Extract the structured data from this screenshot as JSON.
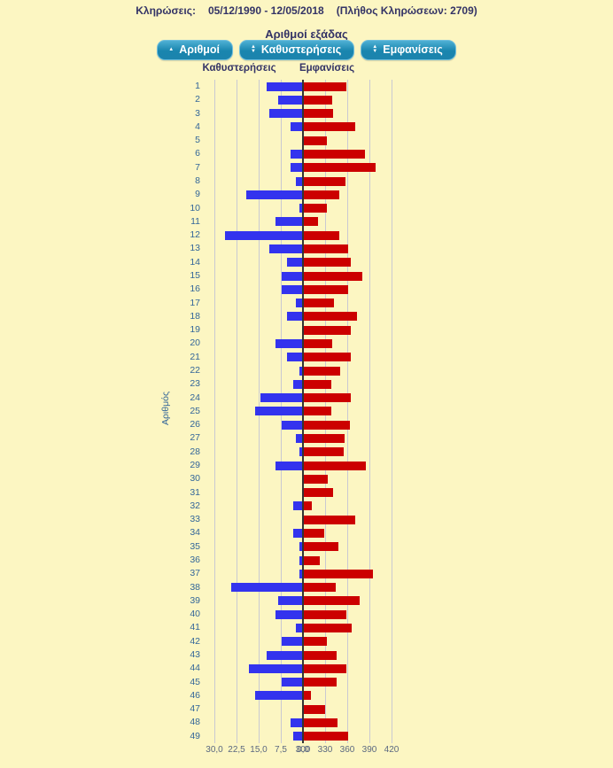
{
  "header": {
    "label": "Κληρώσεις:",
    "date_range": "05/12/1990 - 12/05/2018",
    "count_note": "(Πλήθος Κληρώσεων: 2709)"
  },
  "title": "Αριθμοί εξάδας",
  "buttons": [
    {
      "label": "Αριθμοί",
      "sort": "asc"
    },
    {
      "label": "Καθυστερήσεις",
      "sort": "both"
    },
    {
      "label": "Εμφανίσεις",
      "sort": "both"
    }
  ],
  "columns": {
    "left": "Καθυστερήσεις",
    "right": "Εμφανίσεις"
  },
  "colors": {
    "background": "#FCF6C2",
    "delay_bar": "#3333EE",
    "appearance_bar": "#CC0000",
    "axis_line": "#333333",
    "gridline": "#C9C9D2",
    "heading_text": "#333366",
    "row_label_text": "#336699",
    "button_fill": "#1985AE"
  },
  "chart_data": {
    "type": "bar",
    "subtype": "horizontal-diverging",
    "title": "Αριθμοί εξάδας",
    "ylabel": "Αριθμός",
    "grid": true,
    "categories": [
      1,
      2,
      3,
      4,
      5,
      6,
      7,
      8,
      9,
      10,
      11,
      12,
      13,
      14,
      15,
      16,
      17,
      18,
      19,
      20,
      21,
      22,
      23,
      24,
      25,
      26,
      27,
      28,
      29,
      30,
      31,
      32,
      33,
      34,
      35,
      36,
      37,
      38,
      39,
      40,
      41,
      42,
      43,
      44,
      45,
      46,
      47,
      48,
      49
    ],
    "series": [
      {
        "name": "Καθυστερήσεις",
        "side": "left",
        "color": "#3333EE",
        "axis_range": [
          30.0,
          0.0
        ],
        "axis_ticks": [
          "30,0",
          "22,5",
          "15,0",
          "7,5",
          "0,0"
        ],
        "values": [
          12,
          8,
          11,
          4,
          0,
          4,
          4,
          2,
          19,
          1,
          9,
          26,
          11,
          5,
          7,
          7,
          2,
          5,
          0,
          9,
          5,
          1,
          3,
          14,
          16,
          7,
          2,
          1,
          9,
          0,
          0,
          3,
          0,
          3,
          1,
          1,
          1,
          24,
          8,
          9,
          2,
          7,
          12,
          18,
          7,
          16,
          0,
          4,
          3
        ]
      },
      {
        "name": "Εμφανίσεις",
        "side": "right",
        "color": "#CC0000",
        "axis_range": [
          300,
          420
        ],
        "axis_ticks": [
          "300",
          "330",
          "360",
          "390",
          "420"
        ],
        "values": [
          358,
          338,
          340,
          370,
          331,
          383,
          397,
          356,
          348,
          331,
          319,
          348,
          360,
          363,
          379,
          360,
          341,
          372,
          364,
          338,
          363,
          349,
          337,
          364,
          337,
          362,
          355,
          354,
          384,
          332,
          340,
          311,
          369,
          328,
          347,
          322,
          393,
          343,
          376,
          358,
          365,
          331,
          344,
          358,
          344,
          310,
          329,
          346,
          360
        ]
      }
    ]
  }
}
